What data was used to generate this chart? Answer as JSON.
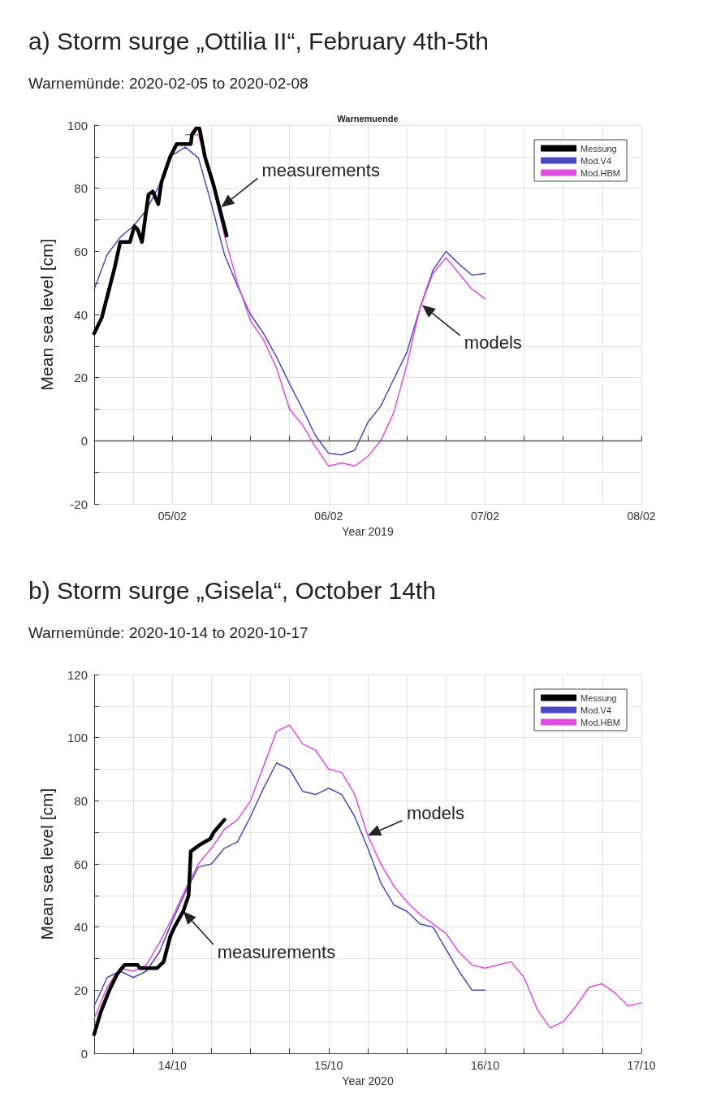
{
  "chart_data": [
    {
      "type": "line",
      "title": "a) Storm surge „Ottilia II“, February 4th-5th",
      "subtitle": "Warnemünde: 2020-02-05 to 2020-02-08",
      "xlabel": "Year 2019",
      "ylabel": "Mean sea level [cm]",
      "annotations": [
        "Warnemuende",
        {
          "text": "measurements",
          "x": "2020-02-05T07:30",
          "y": 74
        },
        {
          "text": "models",
          "x": "2020-02-06T14:20",
          "y": 43
        }
      ],
      "x": [
        "2020-02-04T12:00",
        "2020-02-04T14:00",
        "2020-02-04T16:00",
        "2020-02-04T18:00",
        "2020-02-04T20:00",
        "2020-02-04T22:00",
        "2020-02-05T00:00",
        "2020-02-05T02:00",
        "2020-02-05T04:00",
        "2020-02-05T06:00",
        "2020-02-05T08:00",
        "2020-02-05T10:00",
        "2020-02-05T12:00",
        "2020-02-05T14:00",
        "2020-02-05T16:00",
        "2020-02-05T18:00",
        "2020-02-05T20:00",
        "2020-02-05T22:00",
        "2020-02-06T00:00",
        "2020-02-06T02:00",
        "2020-02-06T04:00",
        "2020-02-06T06:00",
        "2020-02-06T08:00",
        "2020-02-06T10:00",
        "2020-02-06T12:00",
        "2020-02-06T14:00",
        "2020-02-06T16:00",
        "2020-02-06T18:00",
        "2020-02-06T20:00",
        "2020-02-06T22:00",
        "2020-02-07T00:00"
      ],
      "series": [
        {
          "name": "Messung",
          "color": "#000000",
          "x": [
            "2020-02-04T12:00",
            "2020-02-04T13:10",
            "2020-02-04T14:10",
            "2020-02-04T15:10",
            "2020-02-04T16:00",
            "2020-02-04T17:30",
            "2020-02-04T18:10",
            "2020-02-04T18:40",
            "2020-02-04T19:20",
            "2020-02-04T20:20",
            "2020-02-04T21:00",
            "2020-02-04T21:50",
            "2020-02-04T22:20",
            "2020-02-04T23:40",
            "2020-02-05T00:40",
            "2020-02-05T01:50",
            "2020-02-05T02:50",
            "2020-02-05T03:00",
            "2020-02-05T03:40",
            "2020-02-05T04:10",
            "2020-02-05T05:00",
            "2020-02-05T06:20",
            "2020-02-05T07:20",
            "2020-02-05T08:20"
          ],
          "values": [
            34,
            39,
            47,
            55,
            63,
            63,
            68,
            67,
            63,
            78,
            79,
            75,
            82,
            90,
            94,
            94,
            94,
            97,
            99,
            99,
            90,
            81,
            73,
            65
          ]
        },
        {
          "name": "Mod.V4",
          "color": "#4a4ac0",
          "values": [
            48,
            59,
            64.5,
            68,
            73,
            81,
            90.5,
            93,
            89.6,
            75,
            59,
            49,
            40,
            34,
            26.5,
            18,
            10,
            1.5,
            -4,
            -4.5,
            -3,
            5.8,
            11,
            19.6,
            28,
            42,
            54,
            60,
            56,
            52.5,
            53
          ]
        },
        {
          "name": "Mod.HBM",
          "color": "#e04ce0",
          "values": [
            null,
            null,
            null,
            null,
            null,
            null,
            null,
            97,
            97,
            83,
            65,
            50,
            38,
            32,
            23,
            10,
            5,
            -2,
            -8,
            -7,
            -8,
            -5,
            0,
            9,
            24,
            42,
            53,
            58,
            53,
            48,
            45
          ]
        }
      ],
      "xlim": [
        "2020-02-04T12:00",
        "2020-02-08"
      ],
      "xticks": [
        {
          "value": "2020-02-04T18:00",
          "label": null
        },
        {
          "value": "2020-02-05",
          "label": "05/02"
        },
        {
          "value": "2020-02-05T06:00",
          "label": null
        },
        {
          "value": "2020-02-05T12:00",
          "label": null
        },
        {
          "value": "2020-02-05T18:00",
          "label": null
        },
        {
          "value": "2020-02-06",
          "label": "06/02"
        },
        {
          "value": "2020-02-06T06:00",
          "label": null
        },
        {
          "value": "2020-02-06T12:00",
          "label": null
        },
        {
          "value": "2020-02-06T18:00",
          "label": null
        },
        {
          "value": "2020-02-07",
          "label": "07/02"
        },
        {
          "value": "2020-02-07T06:00",
          "label": null
        },
        {
          "value": "2020-02-07T12:00",
          "label": null
        },
        {
          "value": "2020-02-07T18:00",
          "label": null
        },
        {
          "value": "2020-02-08",
          "label": "08/02"
        }
      ],
      "ylim": [
        -20,
        100
      ],
      "yticks": [
        -20,
        {
          "value": -10,
          "label": null
        },
        0,
        {
          "value": 10,
          "label": null
        },
        20,
        {
          "value": 30,
          "label": null
        },
        40,
        {
          "value": 50,
          "label": null
        },
        60,
        {
          "value": 70,
          "label": null
        },
        80,
        {
          "value": 90,
          "label": null
        },
        100
      ],
      "ref_lines": [
        {
          "axis": "y",
          "value": 0,
          "color": "#555555"
        }
      ],
      "grid": true,
      "legend": "top right",
      "marker": "none",
      "line_style": "solid"
    },
    {
      "type": "line",
      "title": "b) Storm surge „Gisela“, October 14th",
      "subtitle": "Warnemünde: 2020-10-14 to 2020-10-17",
      "xlabel": "Year 2020",
      "ylabel": "Mean sea level [cm]",
      "annotations": [
        {
          "text": "measurements",
          "x": "2020-10-14T01:40",
          "y": 45
        },
        {
          "text": "models",
          "x": "2020-10-15T06:00",
          "y": 69
        }
      ],
      "x": [
        "2020-10-13T12:00",
        "2020-10-13T14:00",
        "2020-10-13T16:00",
        "2020-10-13T18:00",
        "2020-10-13T20:00",
        "2020-10-13T22:00",
        "2020-10-14T00:00",
        "2020-10-14T02:00",
        "2020-10-14T04:00",
        "2020-10-14T06:00",
        "2020-10-14T08:00",
        "2020-10-14T10:00",
        "2020-10-14T12:00",
        "2020-10-14T14:00",
        "2020-10-14T16:00",
        "2020-10-14T18:00",
        "2020-10-14T20:00",
        "2020-10-14T22:00",
        "2020-10-15T00:00",
        "2020-10-15T02:00",
        "2020-10-15T04:00",
        "2020-10-15T06:00",
        "2020-10-15T08:00",
        "2020-10-15T10:00",
        "2020-10-15T12:00",
        "2020-10-15T14:00",
        "2020-10-15T16:00",
        "2020-10-15T18:00",
        "2020-10-15T20:00",
        "2020-10-15T22:00",
        "2020-10-16T00:00",
        "2020-10-16T02:00",
        "2020-10-16T04:00",
        "2020-10-16T06:00",
        "2020-10-16T08:00",
        "2020-10-16T10:00",
        "2020-10-16T12:00",
        "2020-10-16T14:00",
        "2020-10-16T16:00",
        "2020-10-16T18:00",
        "2020-10-16T20:00",
        "2020-10-16T22:00",
        "2020-10-17T00:00"
      ],
      "series": [
        {
          "name": "Messung",
          "color": "#000000",
          "x": [
            "2020-10-13T12:00",
            "2020-10-13T13:00",
            "2020-10-13T14:20",
            "2020-10-13T15:30",
            "2020-10-13T16:40",
            "2020-10-13T18:40",
            "2020-10-13T19:00",
            "2020-10-13T21:40",
            "2020-10-13T22:40",
            "2020-10-13T23:40",
            "2020-10-14T00:20",
            "2020-10-14T01:40",
            "2020-10-14T02:30",
            "2020-10-14T02:50",
            "2020-10-14T03:30",
            "2020-10-14T04:10",
            "2020-10-14T05:00",
            "2020-10-14T05:50",
            "2020-10-14T06:20",
            "2020-10-14T07:10",
            "2020-10-14T08:00"
          ],
          "values": [
            6,
            13,
            20,
            25,
            28,
            28,
            27,
            27,
            29,
            37,
            40,
            45,
            50,
            64,
            65,
            66,
            67,
            68,
            70,
            72,
            74
          ]
        },
        {
          "name": "Mod.V4",
          "color": "#4a4ac0",
          "values": [
            15,
            24,
            26,
            24,
            26,
            32,
            42,
            51,
            59,
            60,
            65,
            67,
            75,
            84,
            92,
            90,
            83,
            82,
            84,
            82,
            75,
            65,
            54,
            47,
            45,
            41,
            40,
            33,
            26,
            20,
            20,
            null,
            null,
            null,
            null,
            null,
            null,
            null,
            null,
            null,
            null,
            null,
            null
          ]
        },
        {
          "name": "Mod.HBM",
          "color": "#e04ce0",
          "values": [
            11,
            21,
            27,
            26,
            28,
            35,
            43,
            52,
            60,
            65,
            71,
            74,
            80,
            91,
            102,
            104,
            98,
            96,
            90,
            89,
            82,
            69,
            60,
            53,
            48,
            44,
            41,
            38,
            32,
            28,
            27,
            28,
            29,
            24,
            14,
            8,
            10,
            15,
            21,
            22,
            19,
            15,
            16
          ]
        }
      ],
      "xlim": [
        "2020-10-13T12:00",
        "2020-10-17"
      ],
      "xticks": [
        {
          "value": "2020-10-13T18:00",
          "label": null
        },
        {
          "value": "2020-10-14",
          "label": "14/10"
        },
        {
          "value": "2020-10-14T06:00",
          "label": null
        },
        {
          "value": "2020-10-14T12:00",
          "label": null
        },
        {
          "value": "2020-10-14T18:00",
          "label": null
        },
        {
          "value": "2020-10-15",
          "label": "15/10"
        },
        {
          "value": "2020-10-15T06:00",
          "label": null
        },
        {
          "value": "2020-10-15T12:00",
          "label": null
        },
        {
          "value": "2020-10-15T18:00",
          "label": null
        },
        {
          "value": "2020-10-16",
          "label": "16/10"
        },
        {
          "value": "2020-10-16T06:00",
          "label": null
        },
        {
          "value": "2020-10-16T12:00",
          "label": null
        },
        {
          "value": "2020-10-16T18:00",
          "label": null
        },
        {
          "value": "2020-10-17",
          "label": "17/10"
        }
      ],
      "ylim": [
        0,
        120
      ],
      "yticks": [
        0,
        {
          "value": 10,
          "label": null
        },
        20,
        {
          "value": 30,
          "label": null
        },
        40,
        {
          "value": 50,
          "label": null
        },
        60,
        {
          "value": 70,
          "label": null
        },
        80,
        {
          "value": 90,
          "label": null
        },
        100,
        {
          "value": 110,
          "label": null
        },
        120
      ],
      "grid": true,
      "legend": "top right",
      "marker": "none",
      "line_style": "solid"
    }
  ]
}
